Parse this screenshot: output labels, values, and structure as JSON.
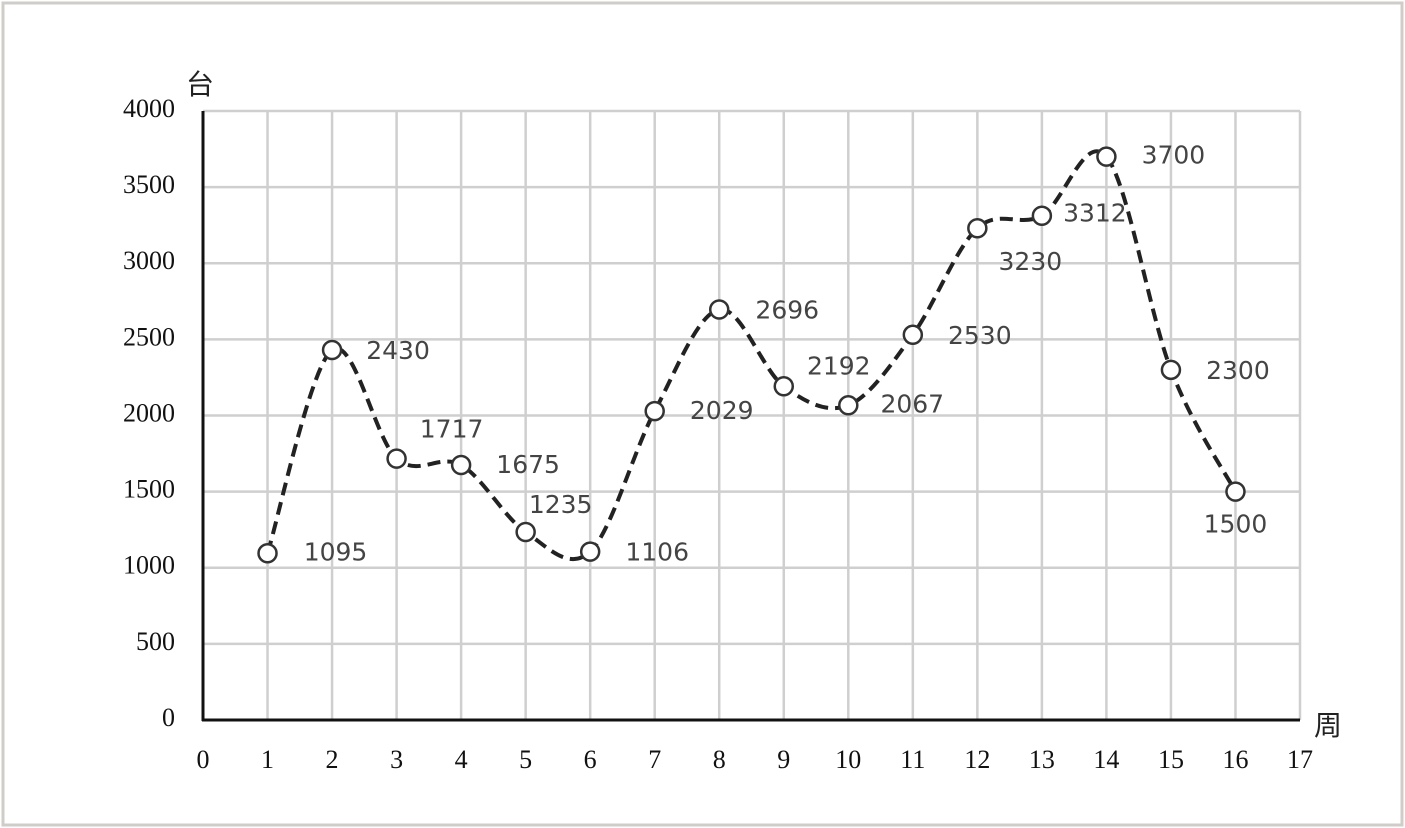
{
  "chart_data": {
    "type": "line",
    "y_label": "台",
    "x_label": "周",
    "x": [
      1,
      2,
      3,
      4,
      5,
      6,
      7,
      8,
      9,
      10,
      11,
      12,
      13,
      14,
      15,
      16
    ],
    "values": [
      1095,
      2430,
      1717,
      1675,
      1235,
      1106,
      2029,
      2696,
      2192,
      2067,
      2530,
      3230,
      3312,
      3700,
      2300,
      1500
    ],
    "color": "#222222",
    "xlim": [
      0,
      17
    ],
    "xticks": [
      0,
      1,
      2,
      3,
      4,
      5,
      6,
      7,
      8,
      9,
      10,
      11,
      12,
      13,
      14,
      15,
      16,
      17
    ],
    "ylim": [
      0,
      4000
    ],
    "yticks": [
      0,
      500,
      1000,
      1500,
      2000,
      2500,
      3000,
      3500,
      4000
    ],
    "grid": true,
    "smooth": true,
    "line_style": "dashed",
    "marker": "circle"
  }
}
